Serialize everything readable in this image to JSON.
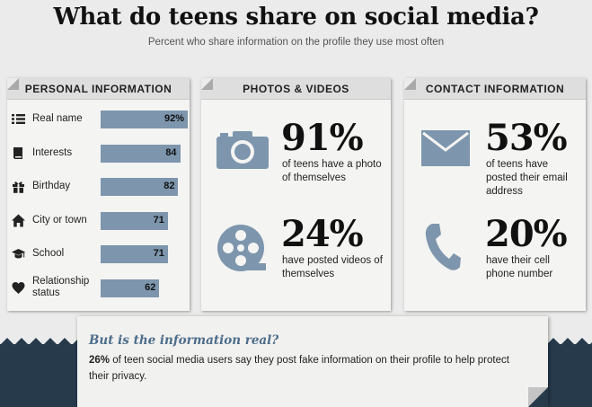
{
  "title": "What do teens share on social media?",
  "subtitle": "Percent who share information on the profile they use most often",
  "colors": {
    "bar": "#7d96ad",
    "icon": "#7d96ad",
    "band": "#273a4c",
    "note_title": "#4d6d8a"
  },
  "personal": {
    "header": "PERSONAL INFORMATION",
    "items": [
      {
        "label": "Real name",
        "value": "92%",
        "icon": "list-icon"
      },
      {
        "label": "Interests",
        "value": "84",
        "icon": "book-icon"
      },
      {
        "label": "Birthday",
        "value": "82",
        "icon": "gift-icon"
      },
      {
        "label": "City or town",
        "value": "71",
        "icon": "house-icon"
      },
      {
        "label": "School",
        "value": "71",
        "icon": "graduation-cap-icon"
      },
      {
        "label": "Relationship status",
        "value": "62",
        "icon": "heart-icon"
      }
    ]
  },
  "photos": {
    "header": "PHOTOS & VIDEOS",
    "stat1_value": "91%",
    "stat1_text": "of teens have a photo of themselves",
    "stat2_value": "24%",
    "stat2_text": "have posted videos of themselves"
  },
  "contact": {
    "header": "CONTACT INFORMATION",
    "stat1_value": "53%",
    "stat1_text": "of teens have posted their email address",
    "stat2_value": "20%",
    "stat2_text": "have their cell phone number"
  },
  "note": {
    "title": "But is the information real?",
    "highlight": "26%",
    "text": " of teen social media users say they post fake information on their profile to help protect their privacy."
  },
  "chart_data": {
    "type": "bar",
    "title": "PERSONAL INFORMATION",
    "categories": [
      "Real name",
      "Interests",
      "Birthday",
      "City or town",
      "School",
      "Relationship status"
    ],
    "values": [
      92,
      84,
      82,
      71,
      71,
      62
    ],
    "xlabel": "",
    "ylabel": "",
    "ylim": [
      0,
      100
    ],
    "grid": false,
    "legend": "none"
  }
}
